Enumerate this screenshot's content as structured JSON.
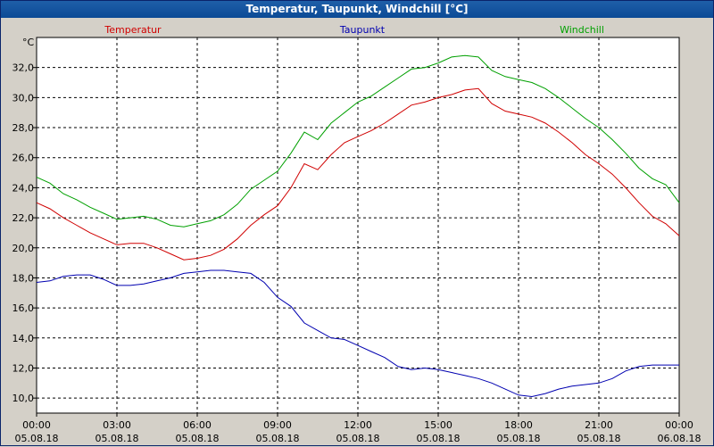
{
  "window": {
    "title": "Temperatur, Taupunkt, Windchill [°C]"
  },
  "chart_data": {
    "type": "line",
    "title": "Temperatur, Taupunkt, Windchill [°C]",
    "ylabel": "°C",
    "xlabel": "",
    "ylim": [
      9.0,
      34.0
    ],
    "yticks": [
      10.0,
      12.0,
      14.0,
      16.0,
      18.0,
      20.0,
      22.0,
      24.0,
      26.0,
      28.0,
      30.0,
      32.0
    ],
    "ytick_labels": [
      "10,0",
      "12,0",
      "14,0",
      "16,0",
      "18,0",
      "20,0",
      "22,0",
      "24,0",
      "26,0",
      "28,0",
      "30,0",
      "32,0"
    ],
    "x_range_hours": [
      0,
      24
    ],
    "xticks_hours": [
      0,
      3,
      6,
      9,
      12,
      15,
      18,
      21,
      24
    ],
    "xtick_times": [
      "00:00",
      "03:00",
      "06:00",
      "09:00",
      "12:00",
      "15:00",
      "18:00",
      "21:00",
      "00:00"
    ],
    "xtick_dates": [
      "05.08.18",
      "05.08.18",
      "05.08.18",
      "05.08.18",
      "05.08.18",
      "05.08.18",
      "05.08.18",
      "05.08.18",
      "06.08.18"
    ],
    "grid": true,
    "legend_position": "top",
    "series": [
      {
        "name": "Temperatur",
        "color": "#d00000",
        "x": [
          0,
          0.5,
          1,
          1.5,
          2,
          2.5,
          3,
          3.5,
          4,
          4.5,
          5,
          5.5,
          6,
          6.5,
          7,
          7.5,
          8,
          8.5,
          9,
          9.5,
          10,
          10.5,
          11,
          11.5,
          12,
          12.5,
          13,
          13.5,
          14,
          14.5,
          15,
          15.5,
          16,
          16.5,
          17,
          17.5,
          18,
          18.5,
          19,
          19.5,
          20,
          20.5,
          21,
          21.5,
          22,
          22.5,
          23,
          23.5,
          24
        ],
        "values": [
          23.0,
          22.6,
          22.0,
          21.5,
          21.0,
          20.6,
          20.2,
          20.3,
          20.3,
          20.0,
          19.6,
          19.2,
          19.3,
          19.5,
          19.9,
          20.6,
          21.5,
          22.2,
          22.8,
          24.0,
          25.6,
          25.2,
          26.2,
          27.0,
          27.4,
          27.8,
          28.3,
          28.9,
          29.5,
          29.7,
          30.0,
          30.2,
          30.5,
          30.6,
          29.6,
          29.1,
          28.9,
          28.7,
          28.3,
          27.7,
          27.0,
          26.2,
          25.6,
          24.9,
          24.0,
          23.0,
          22.1,
          21.6,
          20.8
        ]
      },
      {
        "name": "Taupunkt",
        "color": "#0000b0",
        "x": [
          0,
          0.5,
          1,
          1.5,
          2,
          2.5,
          3,
          3.5,
          4,
          4.5,
          5,
          5.5,
          6,
          6.5,
          7,
          7.5,
          8,
          8.5,
          9,
          9.5,
          10,
          10.5,
          11,
          11.5,
          12,
          12.5,
          13,
          13.5,
          14,
          14.5,
          15,
          15.5,
          16,
          16.5,
          17,
          17.5,
          18,
          18.5,
          19,
          19.5,
          20,
          20.5,
          21,
          21.5,
          22,
          22.5,
          23,
          23.5,
          24
        ],
        "values": [
          17.7,
          17.8,
          18.1,
          18.2,
          18.2,
          17.9,
          17.5,
          17.5,
          17.6,
          17.8,
          18.0,
          18.3,
          18.4,
          18.5,
          18.5,
          18.4,
          18.3,
          17.7,
          16.7,
          16.1,
          15.0,
          14.5,
          14.0,
          13.9,
          13.5,
          13.1,
          12.7,
          12.1,
          11.9,
          12.0,
          11.9,
          11.7,
          11.5,
          11.3,
          11.0,
          10.6,
          10.2,
          10.1,
          10.3,
          10.6,
          10.8,
          10.9,
          11.0,
          11.3,
          11.8,
          12.1,
          12.2,
          12.2,
          12.2
        ]
      },
      {
        "name": "Windchill",
        "color": "#00a000",
        "x": [
          0,
          0.5,
          1,
          1.5,
          2,
          2.5,
          3,
          3.5,
          4,
          4.5,
          5,
          5.5,
          6,
          6.5,
          7,
          7.5,
          8,
          8.5,
          9,
          9.5,
          10,
          10.5,
          11,
          11.5,
          12,
          12.5,
          13,
          13.5,
          14,
          14.5,
          15,
          15.5,
          16,
          16.5,
          17,
          17.5,
          18,
          18.5,
          19,
          19.5,
          20,
          20.5,
          21,
          21.5,
          22,
          22.5,
          23,
          23.5,
          24
        ],
        "values": [
          24.7,
          24.3,
          23.6,
          23.2,
          22.7,
          22.3,
          21.9,
          22.0,
          22.1,
          21.9,
          21.5,
          21.4,
          21.6,
          21.8,
          22.2,
          22.9,
          23.9,
          24.5,
          25.1,
          26.3,
          27.7,
          27.2,
          28.3,
          29.0,
          29.7,
          30.1,
          30.7,
          31.3,
          31.9,
          32.0,
          32.3,
          32.7,
          32.8,
          32.7,
          31.8,
          31.4,
          31.2,
          31.0,
          30.6,
          30.0,
          29.3,
          28.6,
          28.0,
          27.2,
          26.3,
          25.3,
          24.6,
          24.2,
          23.0
        ]
      }
    ]
  }
}
